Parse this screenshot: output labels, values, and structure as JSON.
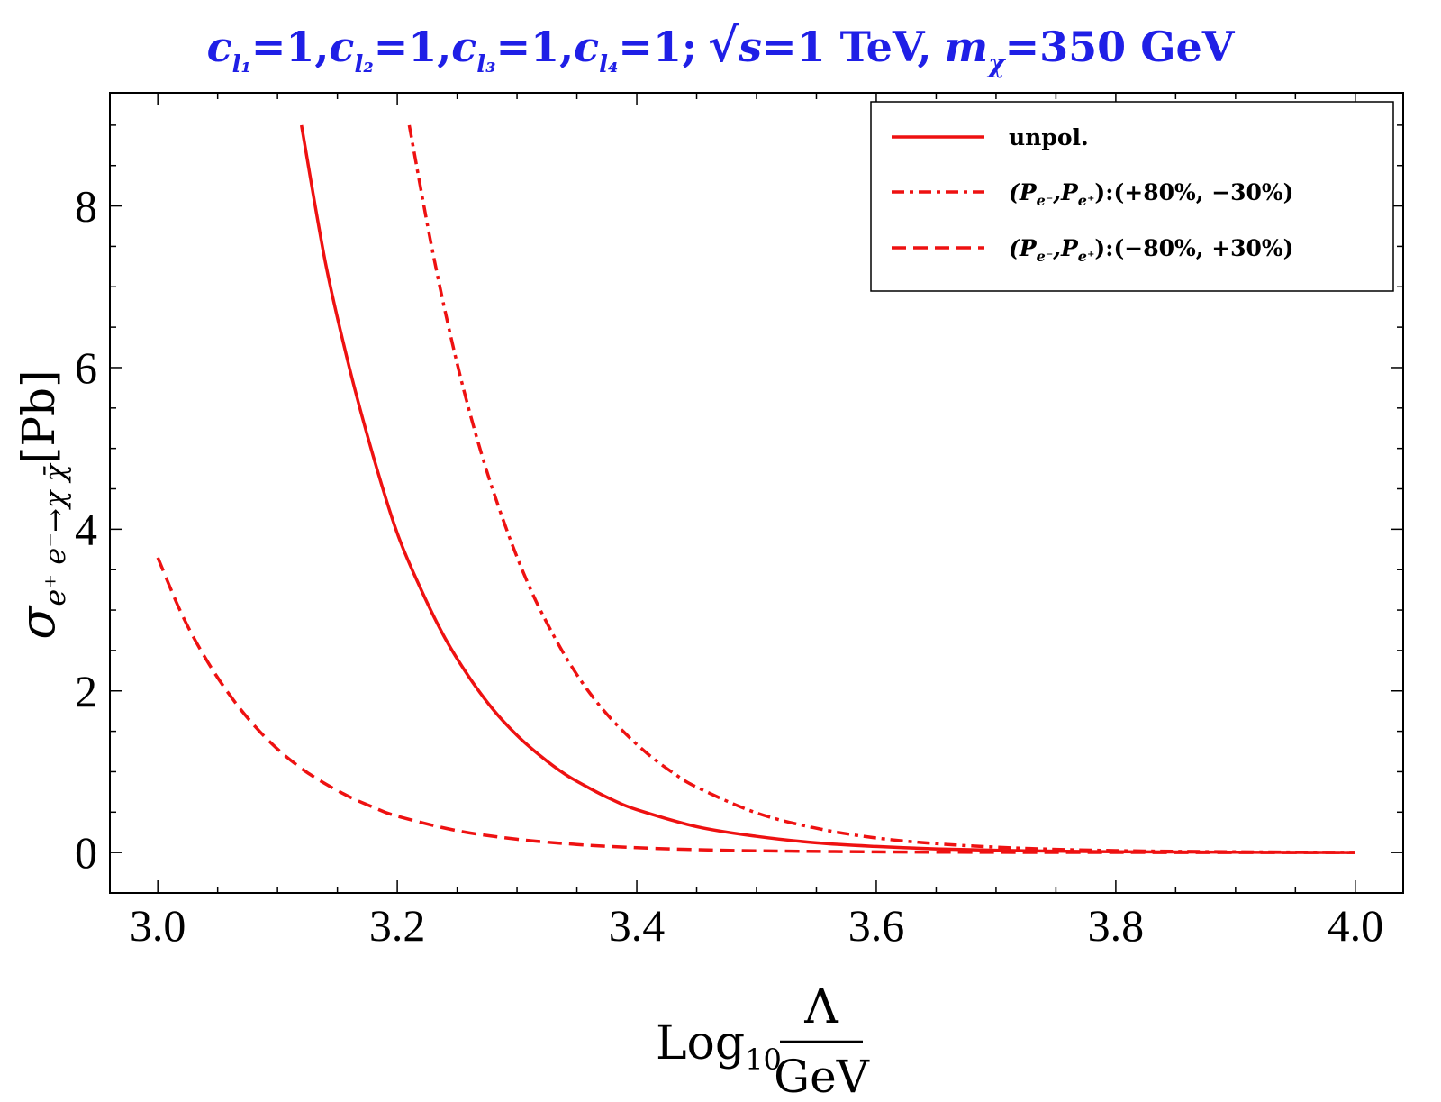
{
  "chart_data": {
    "type": "line",
    "title": {
      "c1_sym": "c",
      "c1_sub": "l₁",
      "c1_val": "=1,",
      "c2_sym": "c",
      "c2_sub": "l₂",
      "c2_val": "=1,",
      "c3_sym": "c",
      "c3_sub": "l₃",
      "c3_val": "=1,",
      "c4_sym": "c",
      "c4_sub": "l₄",
      "c4_val": "=1;",
      "sqrt_sym": "√",
      "s_sym": "s",
      "s_val": "=1 TeV,",
      "m_sym": "m",
      "m_sub": "χ",
      "m_val": "=350 GeV",
      "color": "#1f1fe6"
    },
    "xlabel": {
      "log": "Log",
      "log_sub": "10",
      "numerator": "Λ",
      "denominator": "GeV"
    },
    "ylabel": {
      "sigma": "σ",
      "sub": "e⁺ e⁻→χ χ̄",
      "unit": "[Pb]"
    },
    "xlim": [
      2.96,
      4.04
    ],
    "ylim": [
      -0.5,
      9.4
    ],
    "x_ticks": [
      "3.0",
      "3.2",
      "3.4",
      "3.6",
      "3.8",
      "4.0"
    ],
    "y_ticks": [
      "0",
      "2",
      "4",
      "6",
      "8"
    ],
    "legend_position": "top-right",
    "series": [
      {
        "name": "unpol.",
        "style": "solid",
        "color": "#ee1111",
        "x": [
          3.12,
          3.14,
          3.16,
          3.18,
          3.2,
          3.22,
          3.24,
          3.26,
          3.28,
          3.3,
          3.32,
          3.34,
          3.36,
          3.38,
          3.4,
          3.45,
          3.5,
          3.55,
          3.6,
          3.65,
          3.7,
          3.75,
          3.8,
          3.85,
          3.9,
          3.95,
          4.0
        ],
        "values": [
          9.0,
          7.3,
          6.0,
          4.9,
          3.95,
          3.25,
          2.65,
          2.17,
          1.77,
          1.45,
          1.19,
          0.97,
          0.8,
          0.65,
          0.53,
          0.32,
          0.2,
          0.12,
          0.075,
          0.045,
          0.028,
          0.017,
          0.011,
          0.007,
          0.004,
          0.002,
          0.001
        ]
      },
      {
        "name": "(P_{e⁻},P_{e⁺}):(+80%, −30%)",
        "label_sym": "(P",
        "label_sub1": "e⁻",
        "label_mid": ",P",
        "label_sub2": "e⁺",
        "label_rest": "):(+80%, −30%)",
        "style": "dashdot",
        "color": "#ee1111",
        "x": [
          3.21,
          3.23,
          3.25,
          3.27,
          3.29,
          3.31,
          3.33,
          3.35,
          3.37,
          3.39,
          3.41,
          3.43,
          3.45,
          3.5,
          3.55,
          3.6,
          3.65,
          3.7,
          3.75,
          3.8,
          3.85,
          3.9,
          3.95,
          4.0
        ],
        "values": [
          9.0,
          7.4,
          6.05,
          4.95,
          4.05,
          3.3,
          2.7,
          2.2,
          1.8,
          1.48,
          1.21,
          0.99,
          0.81,
          0.49,
          0.3,
          0.18,
          0.11,
          0.067,
          0.04,
          0.024,
          0.015,
          0.009,
          0.005,
          0.003
        ]
      },
      {
        "name": "(P_{e⁻},P_{e⁺}):(−80%, +30%)",
        "label_sym": "(P",
        "label_sub1": "e⁻",
        "label_mid": ",P",
        "label_sub2": "e⁺",
        "label_rest": "):(−80%, +30%)",
        "style": "dashed",
        "color": "#ee1111",
        "x": [
          3.0,
          3.02,
          3.04,
          3.06,
          3.08,
          3.1,
          3.12,
          3.14,
          3.16,
          3.18,
          3.2,
          3.25,
          3.3,
          3.35,
          3.4,
          3.45,
          3.5,
          3.6,
          3.7,
          3.8,
          3.9,
          4.0
        ],
        "values": [
          3.65,
          2.95,
          2.4,
          1.95,
          1.58,
          1.28,
          1.04,
          0.85,
          0.69,
          0.56,
          0.45,
          0.27,
          0.165,
          0.1,
          0.06,
          0.036,
          0.022,
          0.008,
          0.003,
          0.0012,
          0.0005,
          0.0002
        ]
      }
    ]
  }
}
